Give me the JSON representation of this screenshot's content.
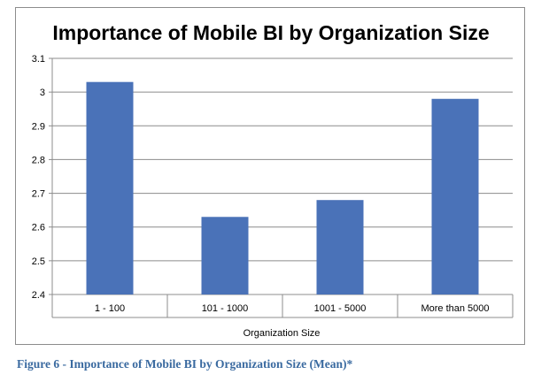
{
  "chart_data": {
    "type": "bar",
    "title": "Importance of Mobile BI by Organization Size",
    "xlabel": "Organization Size",
    "ylabel": "",
    "categories": [
      "1 - 100",
      "101 - 1000",
      "1001 - 5000",
      "More than 5000"
    ],
    "values": [
      3.03,
      2.63,
      2.68,
      2.98
    ],
    "ylim": [
      2.4,
      3.1
    ],
    "yticks": [
      "2.4",
      "2.5",
      "2.6",
      "2.7",
      "2.8",
      "2.9",
      "3",
      "3.1"
    ],
    "grid": true,
    "legend": "none",
    "bar_color": "#4a72b8"
  },
  "caption": "Figure 6 - Importance of Mobile BI by Organization Size (Mean)*"
}
